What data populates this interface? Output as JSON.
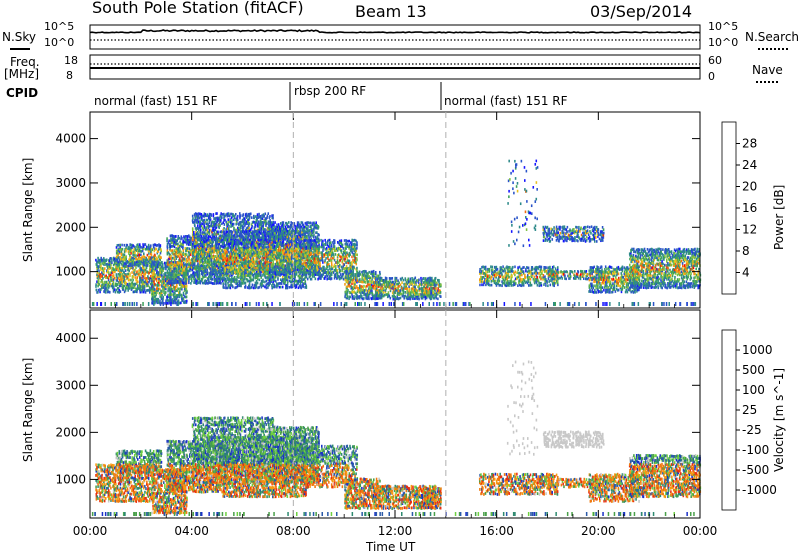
{
  "header": {
    "station": "South Pole Station (fitACF)",
    "beam": "Beam 13",
    "date": "03/Sep/2014"
  },
  "left_labels": {
    "nsky": "N.Sky",
    "nsky_ticks": [
      "10^5",
      "10^0"
    ],
    "freq": "Freq.",
    "freq_unit": "[MHz]",
    "freq_ticks": [
      "18",
      "8"
    ],
    "cpid": "CPID"
  },
  "right_labels": {
    "nsearch": "N.Search",
    "nsearch_ticks": [
      "10^5",
      "10^0"
    ],
    "nave": "Nave",
    "nave_ticks": [
      "60",
      "0"
    ]
  },
  "cpid_segments": [
    {
      "label": "normal (fast) 151 RF",
      "start_hour": 0
    },
    {
      "label": "rbsp 200 RF",
      "start_hour": 8
    },
    {
      "label": "normal (fast) 151 RF",
      "start_hour": 14
    }
  ],
  "chart_data": [
    {
      "type": "heatmap",
      "ylabel": "Slant Range [km]",
      "xlabel": "Time UT",
      "x_ticks": [
        "00:00",
        "04:00",
        "08:00",
        "12:00",
        "16:00",
        "20:00",
        "00:00"
      ],
      "xlim_hours": [
        0,
        24
      ],
      "ylim": [
        180,
        4600
      ],
      "y_ticks": [
        1000,
        2000,
        3000,
        4000
      ],
      "colorbar": {
        "label": "Power [dB]",
        "ticks": [
          "4",
          "8",
          "12",
          "16",
          "20",
          "24",
          "28"
        ],
        "colors": [
          "#1414ff",
          "#2a54c8",
          "#2e8a8a",
          "#3ca05a",
          "#7ec040",
          "#e8c020",
          "#f59a10",
          "#f06a10",
          "#e82a10",
          "#ff0000"
        ]
      },
      "dashed_vlines_hours": [
        8,
        14
      ]
    },
    {
      "type": "heatmap",
      "ylabel": "Slant Range [km]",
      "xlabel": "Time UT",
      "x_ticks": [
        "00:00",
        "04:00",
        "08:00",
        "12:00",
        "16:00",
        "20:00",
        "00:00"
      ],
      "xlim_hours": [
        0,
        24
      ],
      "ylim": [
        180,
        4600
      ],
      "y_ticks": [
        1000,
        2000,
        3000,
        4000
      ],
      "colorbar": {
        "label": "Velocity [m s^-1]",
        "ticks": [
          "1000",
          "500",
          "100",
          "25",
          "-25",
          "-100",
          "-500",
          "-1000"
        ],
        "colors": [
          "#1a30c8",
          "#2a5aa8",
          "#2e8a70",
          "#4aa04a",
          "#6ed040",
          "#c8c8c8",
          "#f0c020",
          "#f59a10",
          "#f07a10",
          "#e83010",
          "#ff0000"
        ]
      },
      "dashed_vlines_hours": [
        8,
        14
      ]
    }
  ],
  "colors": {
    "dash_line": "#b0b0b0",
    "frame": "#000000"
  }
}
